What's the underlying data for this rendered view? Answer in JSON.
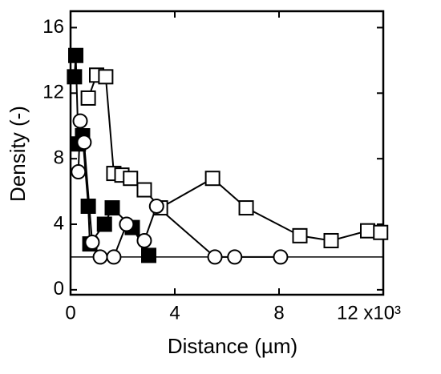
{
  "chart_data": {
    "type": "scatter-line",
    "x_label": "Distance (µm)",
    "y_label": "Density (-)",
    "xlim": [
      0,
      12
    ],
    "ylim": [
      -0.3,
      17
    ],
    "xticks": [
      0,
      4,
      8,
      {
        "value": 12,
        "label": "12 x10³"
      }
    ],
    "yticks": [
      0,
      4,
      8,
      12,
      16
    ],
    "hline": 2,
    "series": [
      {
        "marker": "open-square",
        "x": [
          0.68,
          1.0,
          1.35,
          1.66,
          1.97,
          2.3,
          2.83,
          3.45,
          5.45,
          6.74,
          8.8,
          10.0,
          11.4,
          11.9
        ],
        "values": [
          11.7,
          13.1,
          13.0,
          7.1,
          7.0,
          6.8,
          6.1,
          5.0,
          6.8,
          5.0,
          3.3,
          3.0,
          3.6,
          3.5
        ]
      },
      {
        "marker": "filled-square",
        "x": [
          0.15,
          0.2,
          0.3,
          0.46,
          0.68,
          0.74,
          1.3,
          1.6,
          2.37,
          3.0
        ],
        "values": [
          13.0,
          14.3,
          8.9,
          9.4,
          5.1,
          2.8,
          4.0,
          5.0,
          3.8,
          2.1
        ]
      },
      {
        "marker": "open-circle",
        "x": [
          0.3,
          0.37,
          0.52,
          0.83,
          1.14,
          1.66,
          2.15,
          2.83,
          3.3,
          5.54,
          6.3,
          8.06
        ],
        "values": [
          7.2,
          10.3,
          9.0,
          2.9,
          2.0,
          2.0,
          4.0,
          3.0,
          5.1,
          2.0,
          2.0,
          2.0
        ]
      }
    ]
  }
}
